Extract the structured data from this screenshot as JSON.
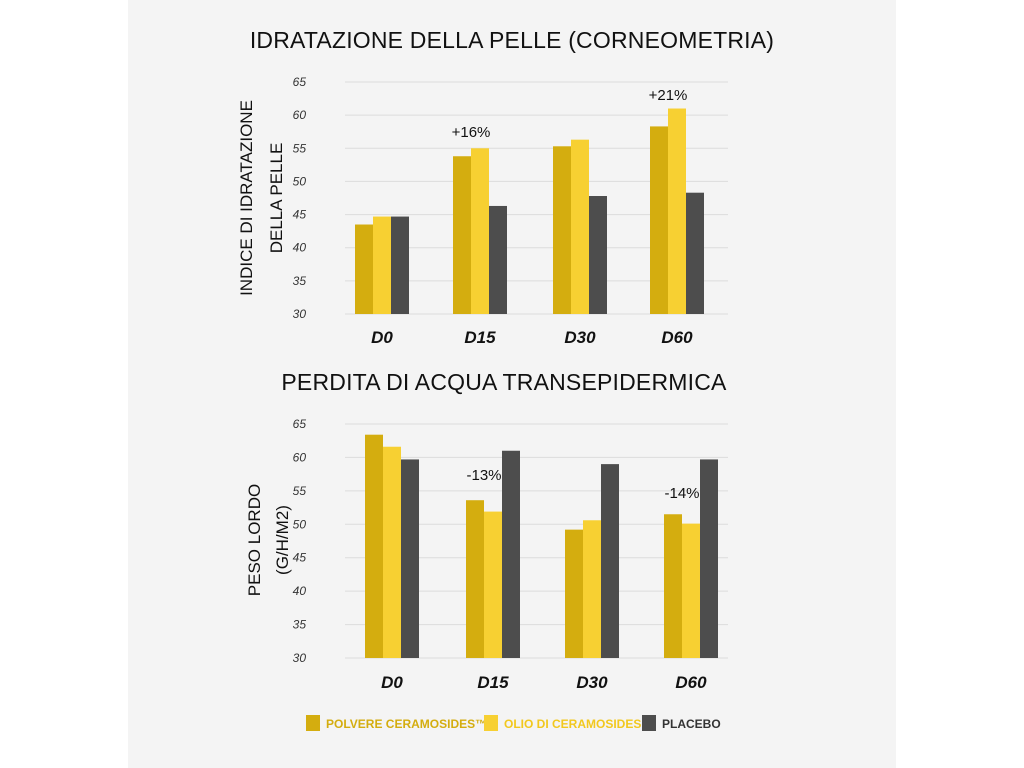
{
  "chart_data": [
    {
      "type": "bar",
      "title": "IDRATAZIONE DELLA PELLE (CORNEOMETRIA)",
      "ylabel_lines": [
        "INDICE DI IDRATAZIONE",
        "DELLA PELLE"
      ],
      "categories": [
        "D0",
        "D15",
        "D30",
        "D60"
      ],
      "yticks": [
        30,
        35,
        40,
        45,
        50,
        55,
        60,
        65
      ],
      "ylim": [
        30,
        65
      ],
      "grid": true,
      "series": [
        {
          "name": "POLVERE CERAMOSIDES™",
          "values": [
            43.5,
            53.8,
            55.3,
            58.3
          ]
        },
        {
          "name": "OLIO DI CERAMOSIDES™",
          "values": [
            44.7,
            55.0,
            56.3,
            61.0
          ]
        },
        {
          "name": "PLACEBO",
          "values": [
            44.7,
            46.3,
            47.8,
            48.3
          ]
        }
      ],
      "annotations": [
        {
          "text": "+16%",
          "category": "D15"
        },
        {
          "text": "+21%",
          "category": "D60"
        }
      ]
    },
    {
      "type": "bar",
      "title": "PERDITA DI ACQUA TRANSEPIDERMICA",
      "ylabel_lines": [
        "PESO LORDO",
        "(G/H/M2)"
      ],
      "categories": [
        "D0",
        "D15",
        "D30",
        "D60"
      ],
      "yticks": [
        30,
        35,
        40,
        45,
        50,
        55,
        60,
        65
      ],
      "ylim": [
        30,
        65
      ],
      "grid": true,
      "series": [
        {
          "name": "POLVERE CERAMOSIDES™",
          "values": [
            63.4,
            53.6,
            49.2,
            51.5
          ]
        },
        {
          "name": "OLIO DI CERAMOSIDES™",
          "values": [
            61.6,
            51.9,
            50.6,
            50.1
          ]
        },
        {
          "name": "PLACEBO",
          "values": [
            59.7,
            61.0,
            59.0,
            59.7
          ]
        }
      ],
      "annotations": [
        {
          "text": "-13%",
          "category": "D15"
        },
        {
          "text": "-14%",
          "category": "D60"
        }
      ]
    }
  ],
  "legend": {
    "placement": "bottom",
    "items": [
      {
        "label": "POLVERE CERAMOSIDES™",
        "color": "#d4ad0f",
        "text_color": "#d4ad0f"
      },
      {
        "label": "OLIO DI CERAMOSIDES™",
        "color": "#f7d032",
        "text_color": "#f2c81e"
      },
      {
        "label": "PLACEBO",
        "color": "#4d4d4d",
        "text_color": "#333333"
      }
    ]
  },
  "colors": {
    "series": [
      "#d4ad0f",
      "#f7d032",
      "#4d4d4d"
    ],
    "background": "#f4f4f4"
  }
}
